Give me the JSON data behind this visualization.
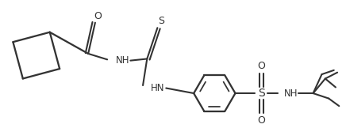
{
  "background_color": "#ffffff",
  "line_color": "#333333",
  "line_width": 1.5,
  "figure_width": 4.36,
  "figure_height": 1.62,
  "dpi": 100,
  "xlim": [
    0,
    10.0
  ],
  "ylim": [
    0,
    3.7
  ]
}
